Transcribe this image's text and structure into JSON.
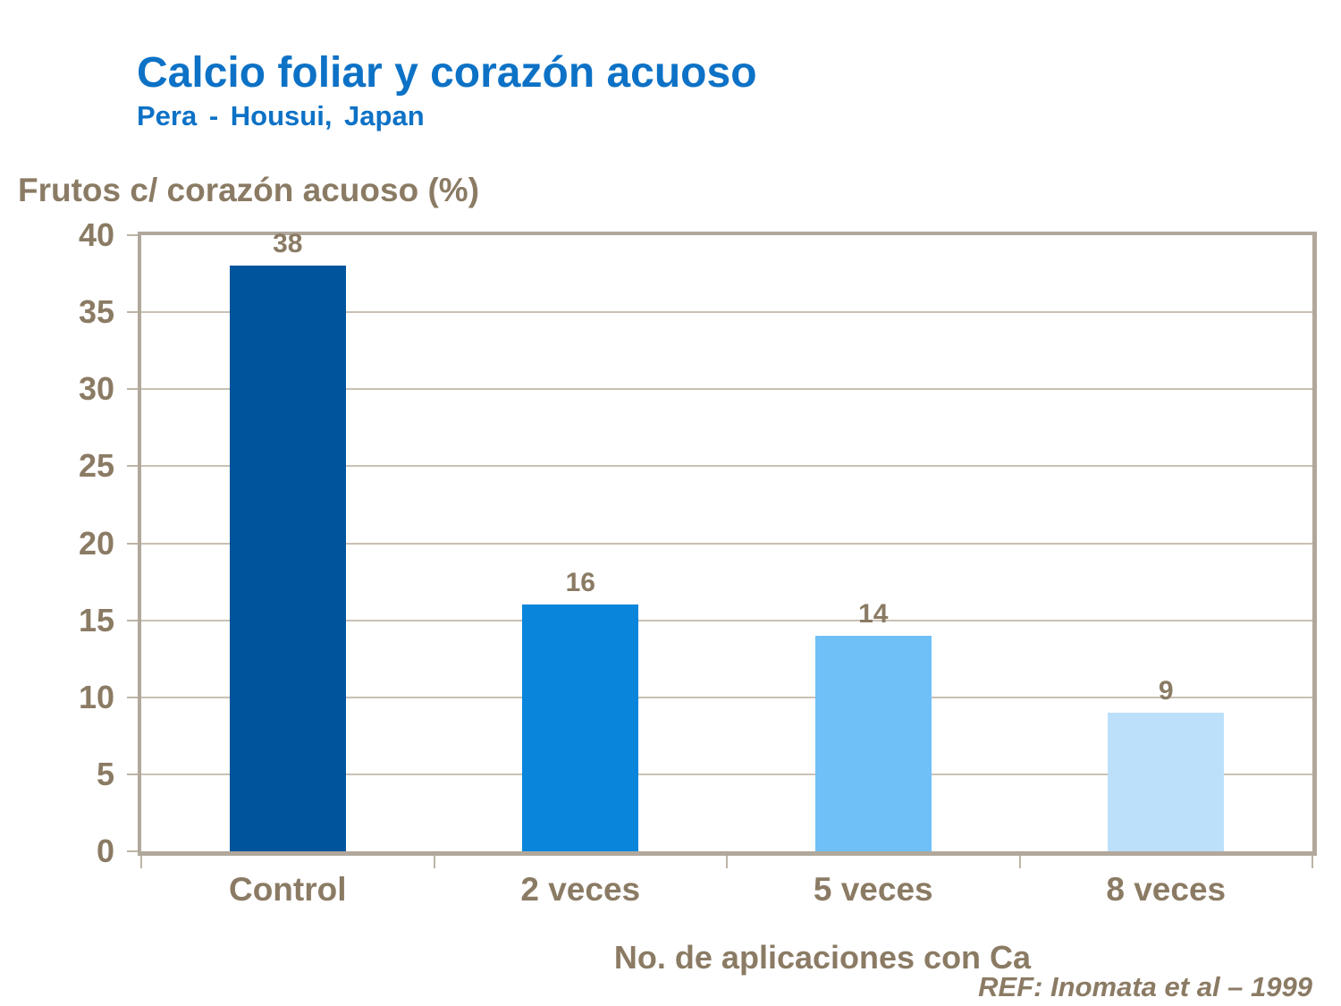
{
  "slide": {
    "title": "Calcio foliar y corazón acuoso",
    "subtitle": "Pera - Housui, Japan",
    "reference": "REF: Inomata et al – 1999"
  },
  "chart_data": {
    "type": "bar",
    "categories": [
      "Control",
      "2 veces",
      "5 veces",
      "8 veces"
    ],
    "values": [
      38,
      16,
      14,
      9
    ],
    "bar_colors": [
      "#00549B",
      "#0986DB",
      "#6FC0F7",
      "#BCE0FA"
    ],
    "ylabel": "Frutos c/ corazón acuoso (%)",
    "xlabel": "No. de aplicaciones con Ca",
    "ylim": [
      0,
      40
    ],
    "yticks": [
      0,
      5,
      10,
      15,
      20,
      25,
      30,
      35,
      40
    ],
    "grid": true,
    "legend": false
  },
  "colors": {
    "title_blue": "#0D72C6",
    "text_brown": "#8B7B64",
    "axis_frame": "#B1A89C",
    "gridline": "#C9C0B4",
    "tick": "#BDB4A7",
    "background": "#FFFFFF"
  }
}
